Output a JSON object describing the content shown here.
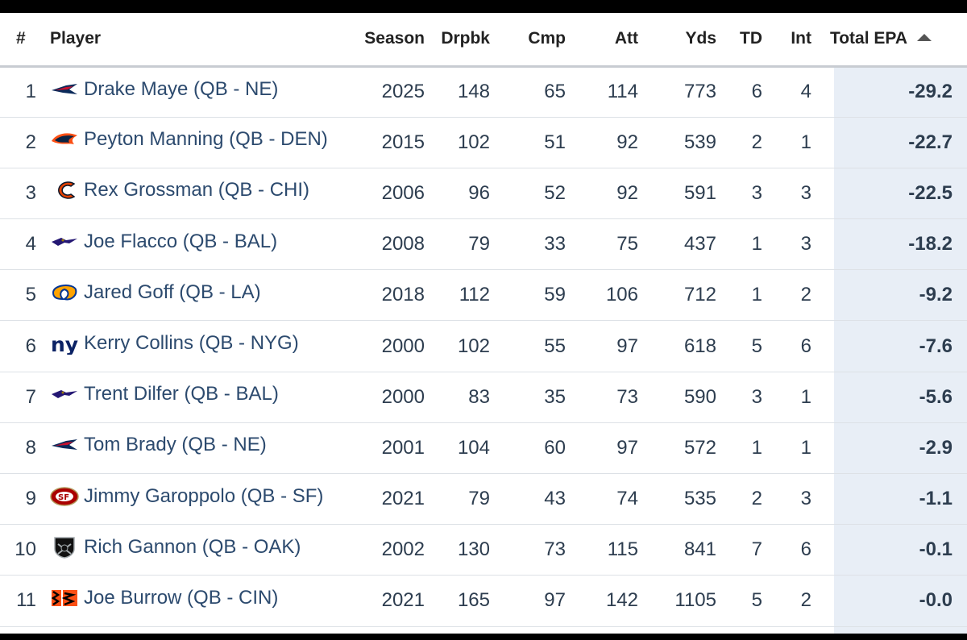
{
  "table": {
    "headers": {
      "rank": "#",
      "player": "Player",
      "season": "Season",
      "drpbk": "Drpbk",
      "cmp": "Cmp",
      "att": "Att",
      "yds": "Yds",
      "td": "TD",
      "int": "Int",
      "total_epa": "Total EPA"
    },
    "sort": {
      "column": "Total EPA",
      "direction": "ascending"
    },
    "rows": [
      {
        "rank": "1",
        "player": "Drake Maye (QB - NE)",
        "team_icon": "patriots-logo-icon",
        "season": "2025",
        "drpbk": "148",
        "cmp": "65",
        "att": "114",
        "yds": "773",
        "td": "6",
        "int": "4",
        "total_epa": "-29.2"
      },
      {
        "rank": "2",
        "player": "Peyton Manning (QB - DEN)",
        "team_icon": "broncos-logo-icon",
        "season": "2015",
        "drpbk": "102",
        "cmp": "51",
        "att": "92",
        "yds": "539",
        "td": "2",
        "int": "1",
        "total_epa": "-22.7"
      },
      {
        "rank": "3",
        "player": "Rex Grossman (QB - CHI)",
        "team_icon": "bears-logo-icon",
        "season": "2006",
        "drpbk": "96",
        "cmp": "52",
        "att": "92",
        "yds": "591",
        "td": "3",
        "int": "3",
        "total_epa": "-22.5"
      },
      {
        "rank": "4",
        "player": "Joe Flacco (QB - BAL)",
        "team_icon": "ravens-logo-icon",
        "season": "2008",
        "drpbk": "79",
        "cmp": "33",
        "att": "75",
        "yds": "437",
        "td": "1",
        "int": "3",
        "total_epa": "-18.2"
      },
      {
        "rank": "5",
        "player": "Jared Goff (QB - LA)",
        "team_icon": "rams-logo-icon",
        "season": "2018",
        "drpbk": "112",
        "cmp": "59",
        "att": "106",
        "yds": "712",
        "td": "1",
        "int": "2",
        "total_epa": "-9.2"
      },
      {
        "rank": "6",
        "player": "Kerry Collins (QB - NYG)",
        "team_icon": "giants-logo-icon",
        "season": "2000",
        "drpbk": "102",
        "cmp": "55",
        "att": "97",
        "yds": "618",
        "td": "5",
        "int": "6",
        "total_epa": "-7.6"
      },
      {
        "rank": "7",
        "player": "Trent Dilfer (QB - BAL)",
        "team_icon": "ravens-logo-icon",
        "season": "2000",
        "drpbk": "83",
        "cmp": "35",
        "att": "73",
        "yds": "590",
        "td": "3",
        "int": "1",
        "total_epa": "-5.6"
      },
      {
        "rank": "8",
        "player": "Tom Brady (QB - NE)",
        "team_icon": "patriots-logo-icon",
        "season": "2001",
        "drpbk": "104",
        "cmp": "60",
        "att": "97",
        "yds": "572",
        "td": "1",
        "int": "1",
        "total_epa": "-2.9"
      },
      {
        "rank": "9",
        "player": "Jimmy Garoppolo (QB - SF)",
        "team_icon": "49ers-logo-icon",
        "season": "2021",
        "drpbk": "79",
        "cmp": "43",
        "att": "74",
        "yds": "535",
        "td": "2",
        "int": "3",
        "total_epa": "-1.1"
      },
      {
        "rank": "10",
        "player": "Rich Gannon (QB - OAK)",
        "team_icon": "raiders-logo-icon",
        "season": "2002",
        "drpbk": "130",
        "cmp": "73",
        "att": "115",
        "yds": "841",
        "td": "7",
        "int": "6",
        "total_epa": "-0.1"
      },
      {
        "rank": "11",
        "player": "Joe Burrow (QB - CIN)",
        "team_icon": "bengals-logo-icon",
        "season": "2021",
        "drpbk": "165",
        "cmp": "97",
        "att": "142",
        "yds": "1105",
        "td": "5",
        "int": "2",
        "total_epa": "-0.0"
      }
    ]
  },
  "colors": {
    "player_link": "#2c4a6e",
    "cell_text": "#2d3d4f",
    "sorted_column_bg": "#e8eef6"
  }
}
